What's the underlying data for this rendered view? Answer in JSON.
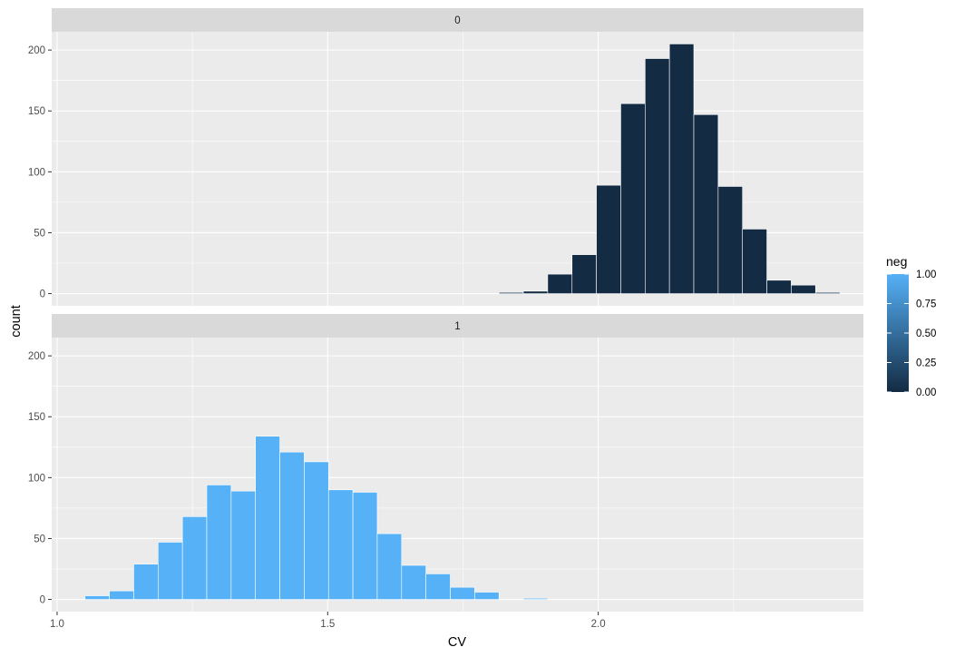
{
  "chart_data": {
    "type": "bar",
    "subtype": "faceted-histogram",
    "xlabel": "CV",
    "ylabel": "count",
    "xlim": [
      0.99,
      2.49
    ],
    "ylim": [
      -10,
      215
    ],
    "x_ticks": [
      1.0,
      1.5,
      2.0
    ],
    "x_tick_labels": [
      "1.0",
      "1.5",
      "2.0"
    ],
    "y_ticks": [
      0,
      50,
      100,
      150,
      200
    ],
    "y_tick_labels": [
      "0",
      "50",
      "100",
      "150",
      "200"
    ],
    "grid": true,
    "bin_width": 0.045,
    "facets": [
      {
        "label": "0",
        "neg": 0,
        "color": "#132b43",
        "bins": [
          {
            "x": 1.7941,
            "count": 0
          },
          {
            "x": 1.8391,
            "count": 1
          },
          {
            "x": 1.8841,
            "count": 2
          },
          {
            "x": 1.9291,
            "count": 16
          },
          {
            "x": 1.9741,
            "count": 32
          },
          {
            "x": 2.0191,
            "count": 89
          },
          {
            "x": 2.0641,
            "count": 156
          },
          {
            "x": 2.1091,
            "count": 193
          },
          {
            "x": 2.1541,
            "count": 205
          },
          {
            "x": 2.1991,
            "count": 147
          },
          {
            "x": 2.2441,
            "count": 88
          },
          {
            "x": 2.2891,
            "count": 53
          },
          {
            "x": 2.3341,
            "count": 11
          },
          {
            "x": 2.3791,
            "count": 7
          },
          {
            "x": 2.4241,
            "count": 1
          }
        ]
      },
      {
        "label": "1",
        "neg": 1,
        "color": "#56b1f7",
        "bins": [
          {
            "x": 1.0741,
            "count": 3
          },
          {
            "x": 1.1191,
            "count": 7
          },
          {
            "x": 1.1641,
            "count": 29
          },
          {
            "x": 1.2091,
            "count": 47
          },
          {
            "x": 1.2541,
            "count": 68
          },
          {
            "x": 1.2991,
            "count": 94
          },
          {
            "x": 1.3441,
            "count": 89
          },
          {
            "x": 1.3891,
            "count": 134
          },
          {
            "x": 1.4341,
            "count": 121
          },
          {
            "x": 1.4791,
            "count": 113
          },
          {
            "x": 1.5241,
            "count": 90
          },
          {
            "x": 1.5691,
            "count": 88
          },
          {
            "x": 1.6141,
            "count": 54
          },
          {
            "x": 1.6591,
            "count": 28
          },
          {
            "x": 1.7041,
            "count": 21
          },
          {
            "x": 1.7491,
            "count": 10
          },
          {
            "x": 1.7941,
            "count": 6
          },
          {
            "x": 1.8391,
            "count": 0
          },
          {
            "x": 1.8841,
            "count": 1
          }
        ]
      }
    ],
    "legend": {
      "title": "neg",
      "position": "right",
      "type": "colorbar",
      "low_color": "#132b43",
      "high_color": "#56b1f7",
      "range": [
        0,
        1
      ],
      "breaks": [
        0.0,
        0.25,
        0.5,
        0.75,
        1.0
      ],
      "labels": [
        "0.00",
        "0.25",
        "0.50",
        "0.75",
        "1.00"
      ]
    },
    "colors": {
      "panel_background": "#ebebeb",
      "grid_major": "#ffffff",
      "strip_background": "#d9d9d9",
      "bar_outline": "#ffffff"
    }
  }
}
